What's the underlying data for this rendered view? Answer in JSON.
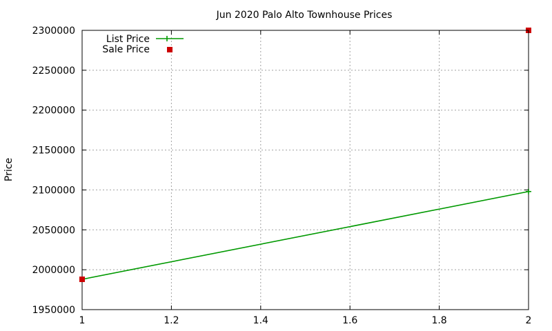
{
  "chart_data": {
    "type": "line",
    "title": "Jun 2020 Palo Alto Townhouse Prices",
    "xlabel": "",
    "ylabel": "Price",
    "xlim": [
      1,
      2
    ],
    "ylim": [
      1950000,
      2300000
    ],
    "x_ticks": [
      1,
      1.2,
      1.4,
      1.6,
      1.8,
      2
    ],
    "x_tick_labels": [
      "1",
      "1.2",
      "1.4",
      "1.6",
      "1.8",
      "2"
    ],
    "y_ticks": [
      1950000,
      2000000,
      2050000,
      2100000,
      2150000,
      2200000,
      2250000,
      2300000
    ],
    "y_tick_labels": [
      "1950000",
      "2000000",
      "2050000",
      "2100000",
      "2150000",
      "2200000",
      "2250000",
      "2300000"
    ],
    "grid": true,
    "legend_position": "top-left",
    "series": [
      {
        "name": "List Price",
        "style": "line-with-plus",
        "color": "#009900",
        "points": [
          {
            "x": 1,
            "y": 1988000
          },
          {
            "x": 2,
            "y": 2098000
          }
        ]
      },
      {
        "name": "Sale Price",
        "style": "square-points",
        "color": "#cc0000",
        "points": [
          {
            "x": 1,
            "y": 1988000
          },
          {
            "x": 2,
            "y": 2300000
          }
        ]
      }
    ]
  }
}
